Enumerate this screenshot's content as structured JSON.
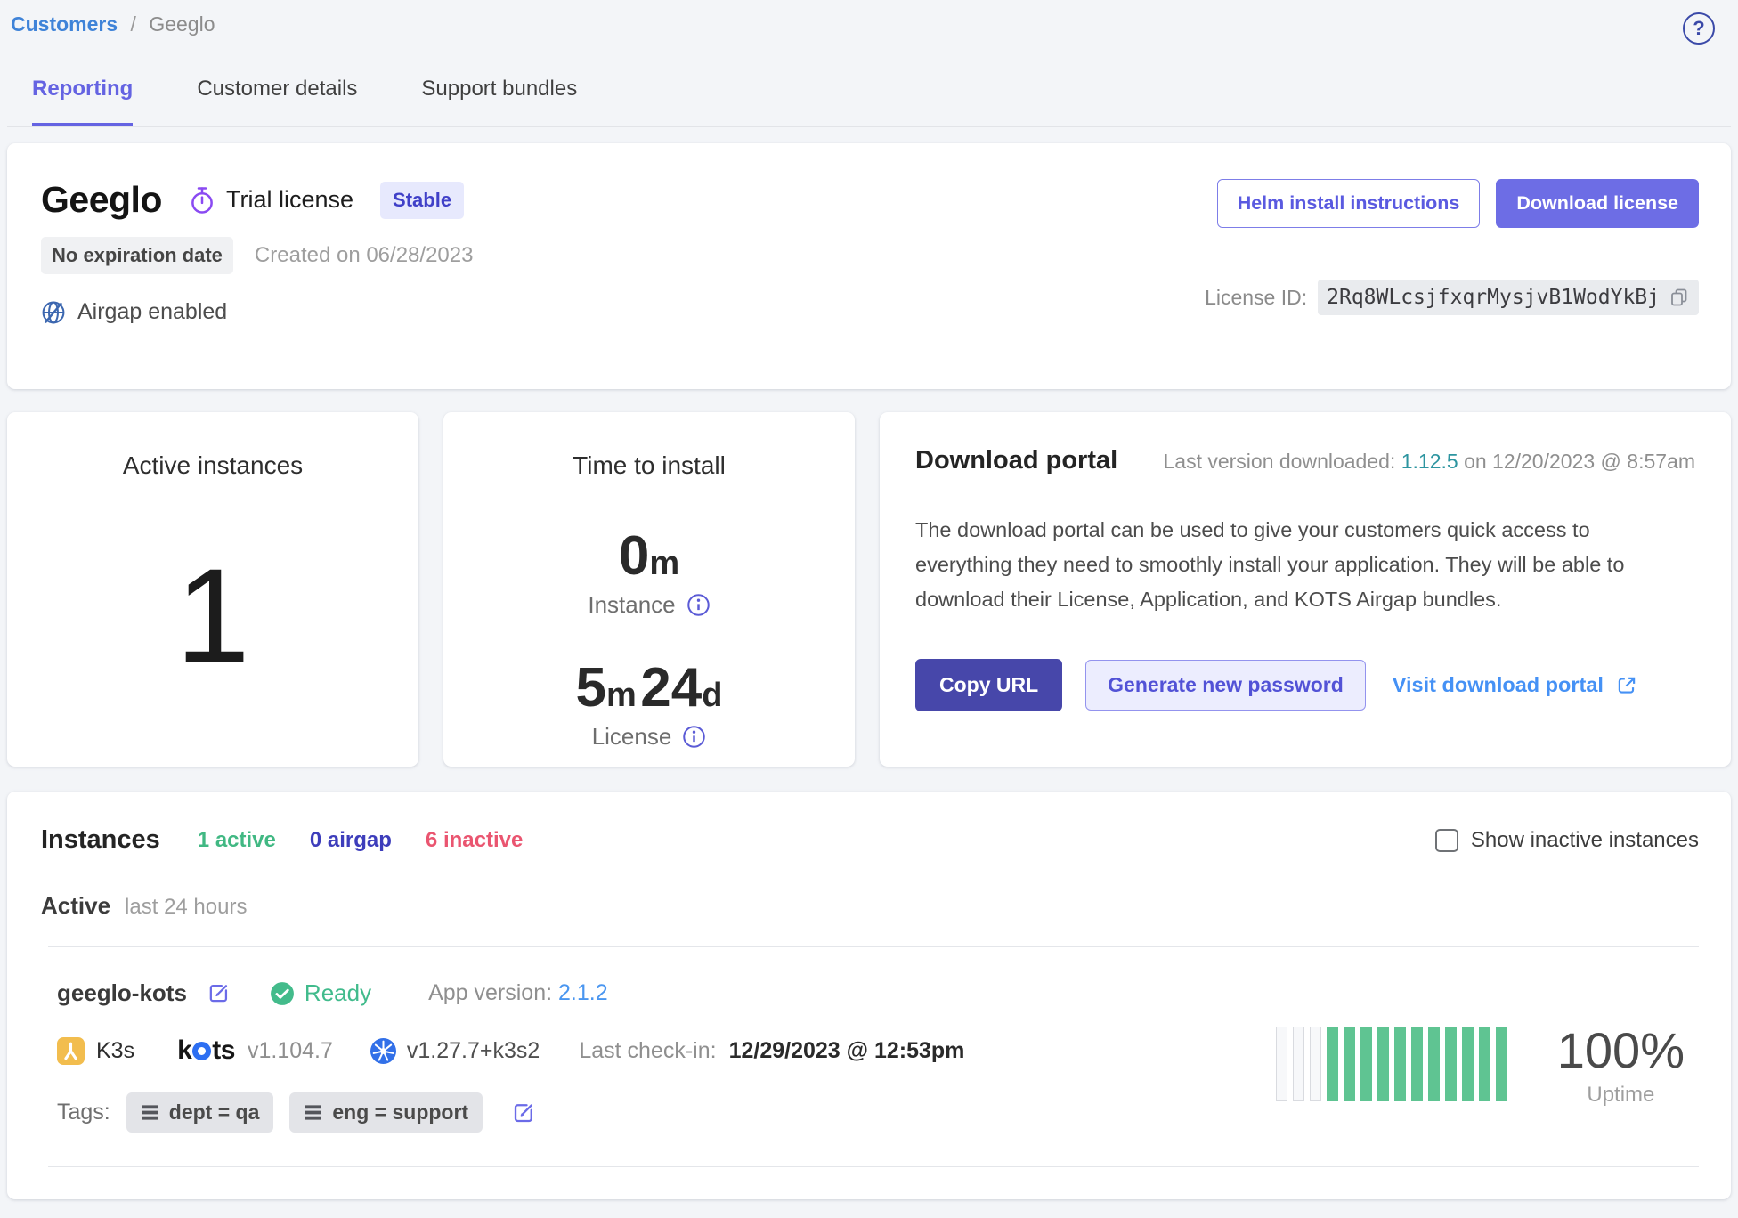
{
  "breadcrumb": {
    "root": "Customers",
    "separator": "/",
    "current": "Geeglo"
  },
  "help": {
    "glyph": "?"
  },
  "tabs": [
    {
      "label": "Reporting"
    },
    {
      "label": "Customer details"
    },
    {
      "label": "Support bundles"
    }
  ],
  "customer": {
    "name": "Geeglo",
    "license_type": "Trial license",
    "channel_badge": "Stable",
    "expiration_badge": "No expiration date",
    "created": "Created on 06/28/2023",
    "airgap": "Airgap enabled",
    "helm_button": "Helm install instructions",
    "download_button": "Download license",
    "license_id_label": "License ID:",
    "license_id": "2Rq8WLcsjfxqrMysjvB1WodYkBj"
  },
  "active_instances": {
    "title": "Active instances",
    "count": "1"
  },
  "time_to_install": {
    "title": "Time to install",
    "instance": {
      "value": "0",
      "unit": "m",
      "label": "Instance"
    },
    "license": {
      "v1": "5",
      "u1": "m",
      "v2": "24",
      "u2": "d",
      "label": "License"
    }
  },
  "download_portal": {
    "title": "Download portal",
    "last_prefix": "Last version downloaded:",
    "version": "1.12.5",
    "last_suffix": "on 12/20/2023 @ 8:57am",
    "description": "The download portal can be used to give your customers quick access to everything they need to smoothly install your application. They will be able to download their License, Application, and KOTS Airgap bundles.",
    "copy_url": "Copy URL",
    "generate_password": "Generate new password",
    "visit_portal": "Visit download portal"
  },
  "instances": {
    "title": "Instances",
    "counts": {
      "active": "1 active",
      "airgap": "0 airgap",
      "inactive": "6 inactive"
    },
    "show_inactive": "Show inactive instances",
    "section_label": "Active",
    "section_sub": "last 24 hours",
    "row": {
      "name": "geeglo-kots",
      "status": "Ready",
      "app_version_label": "App version:",
      "app_version": "2.1.2",
      "distribution": "K3s",
      "kots_k": "k",
      "kots_ts": "ts",
      "kots_version": "v1.104.7",
      "k8s_version": "v1.27.7+k3s2",
      "last_checkin_label": "Last check-in:",
      "last_checkin": "12/29/2023 @ 12:53pm",
      "tags_label": "Tags:",
      "tags": [
        "dept = qa",
        "eng = support"
      ],
      "uptime": {
        "value": "100%",
        "label": "Uptime",
        "bars": [
          "empty",
          "empty",
          "empty",
          "filled",
          "filled",
          "filled",
          "filled",
          "filled",
          "filled",
          "filled",
          "filled",
          "filled",
          "filled",
          "filled"
        ]
      }
    }
  }
}
